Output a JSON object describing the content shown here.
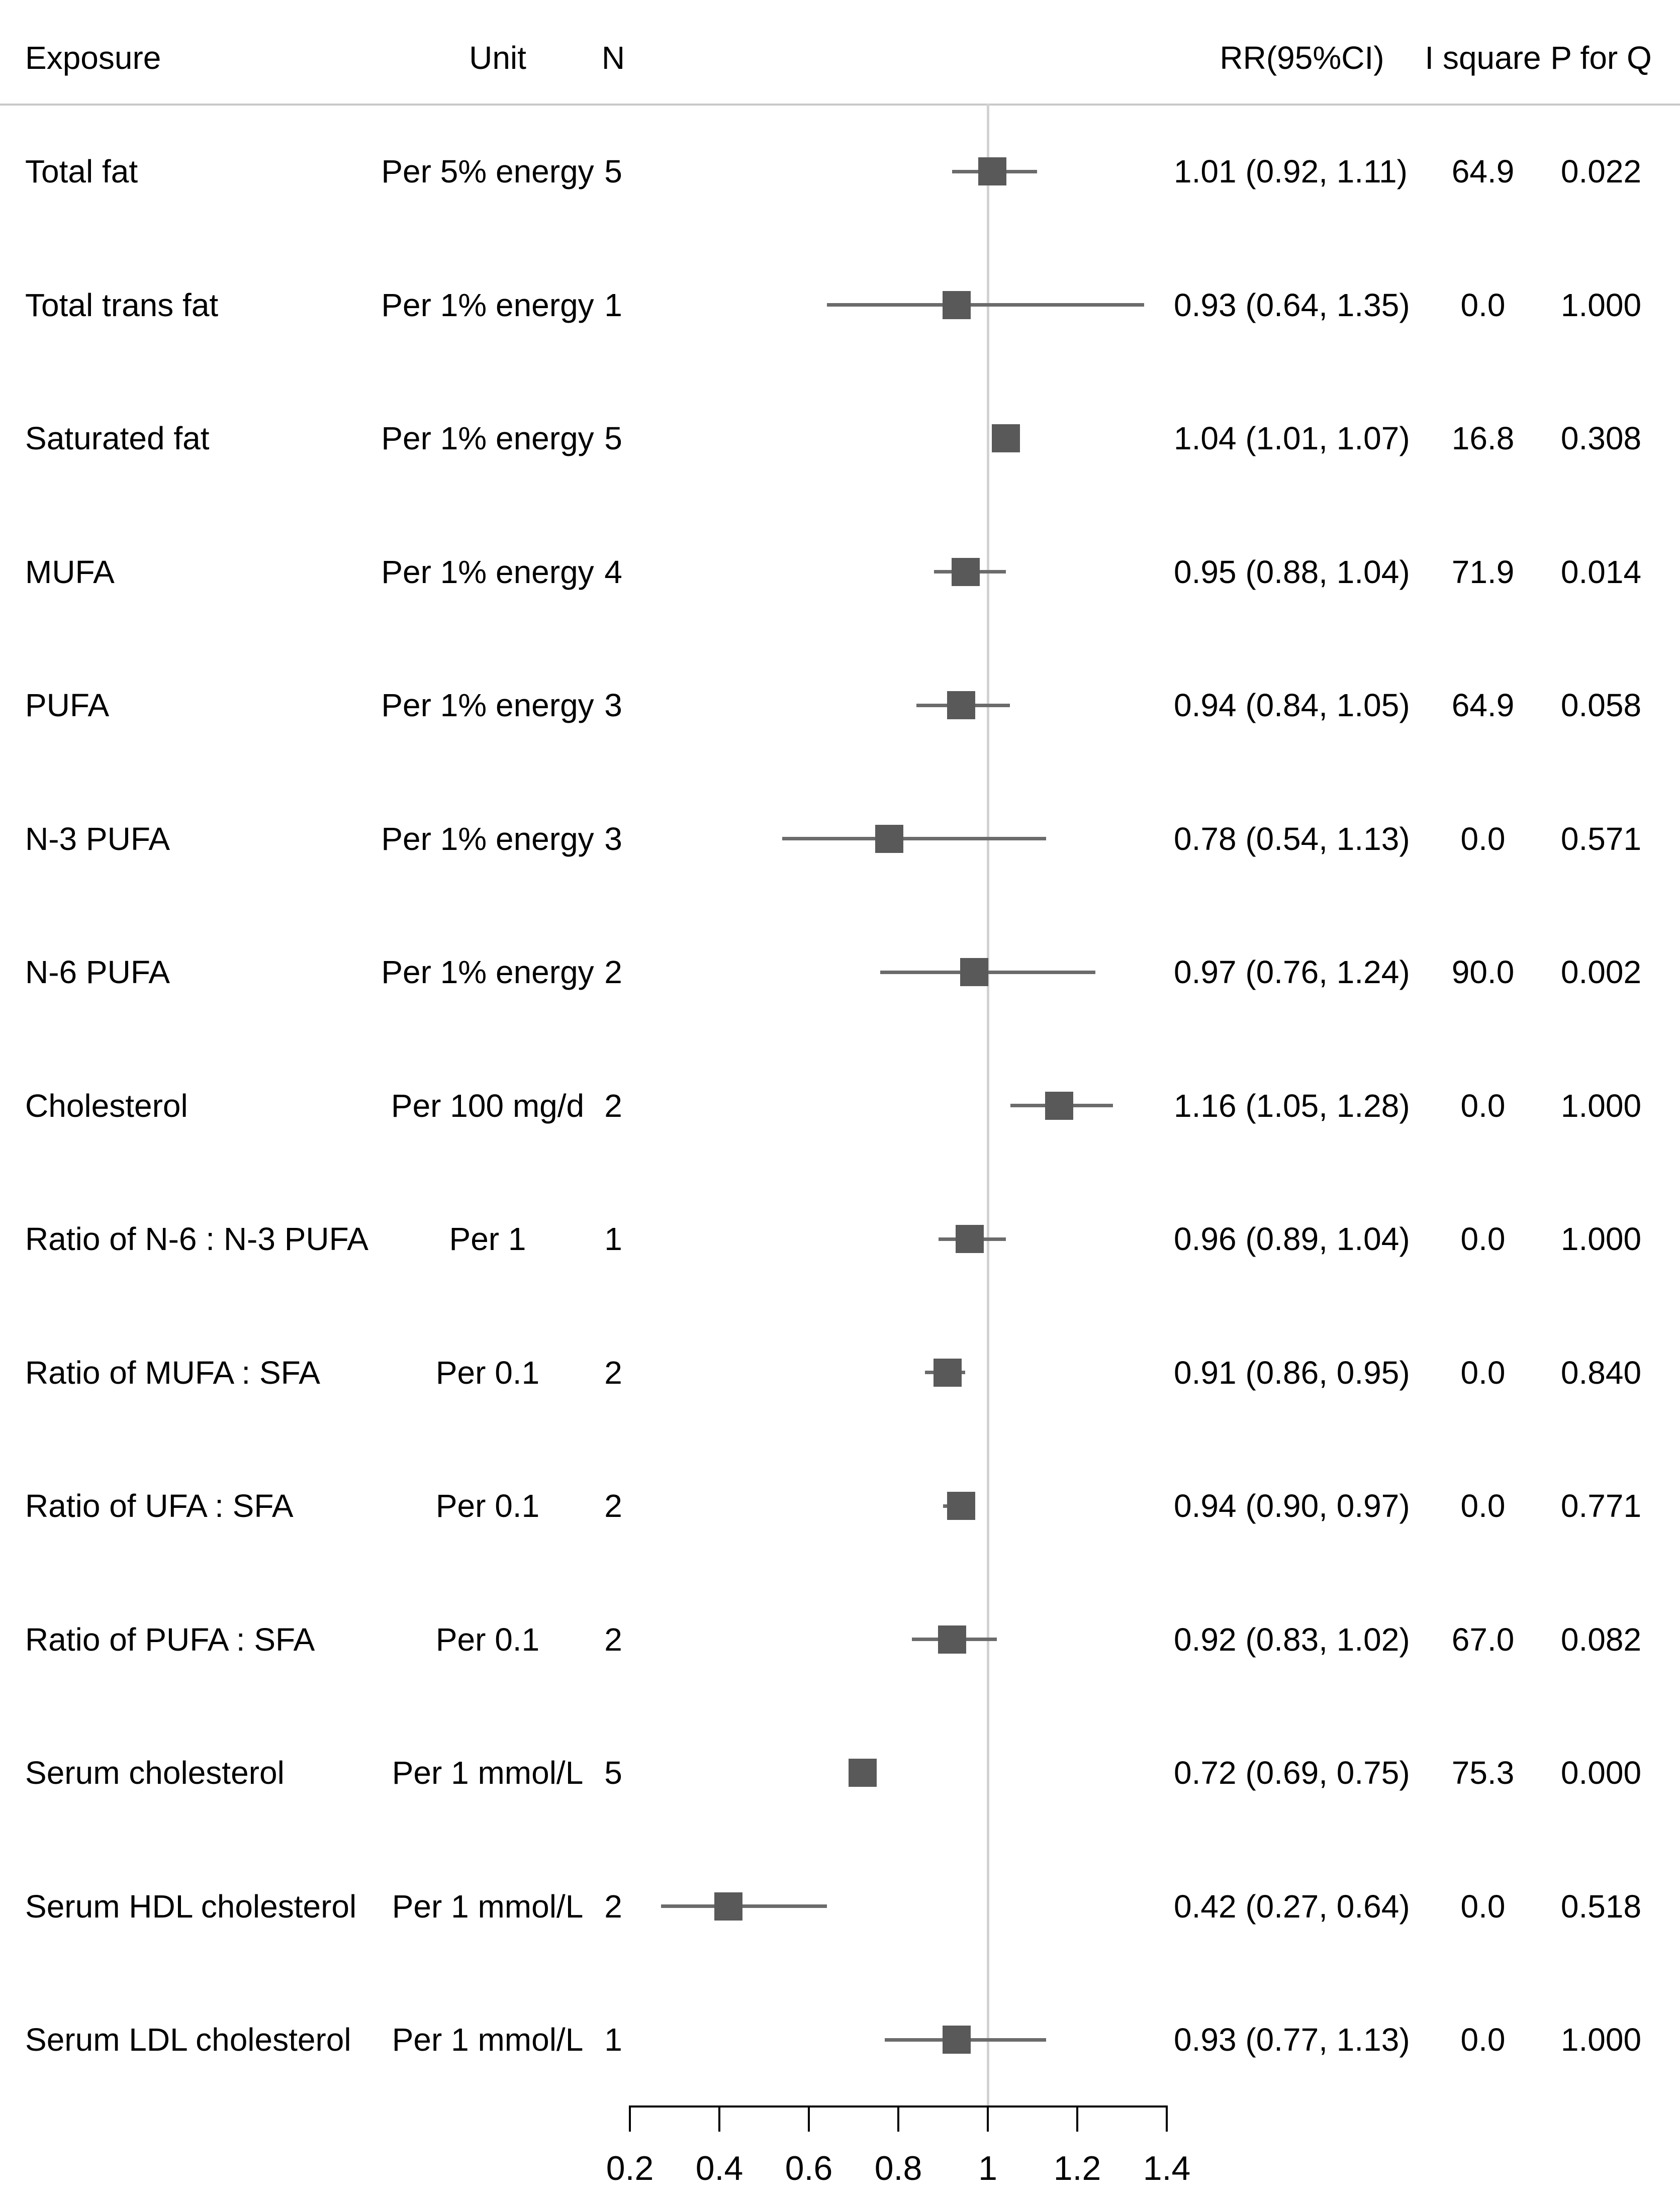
{
  "header": {
    "exposure": "Exposure",
    "unit": "Unit",
    "n": "N",
    "rr": "RR(95%CI)",
    "i_square": "I square",
    "p_for_q": "P for Q"
  },
  "colors": {
    "text": "#000000",
    "marker": "#595959",
    "whisker": "#6b6b6b",
    "reference_line": "#d2d2d2",
    "separator": "#c9c9c9",
    "axis": "#000000"
  },
  "chart_data": {
    "type": "forest",
    "title": "",
    "xlabel": "",
    "x_axis": {
      "range": [
        0.2,
        1.4
      ],
      "reference_value": 1,
      "ticks": [
        0.2,
        0.4,
        0.6,
        0.8,
        1,
        1.2,
        1.4
      ],
      "tick_labels": [
        "0.2",
        "0.4",
        "0.6",
        "0.8",
        "1",
        "1.2",
        "1.4"
      ]
    },
    "columns": [
      "Exposure",
      "Unit",
      "N",
      "RR(95%CI)",
      "I square",
      "P for Q"
    ],
    "rows": [
      {
        "exposure": "Total fat",
        "unit": "Per 5% energy",
        "n": "5",
        "estimate": 1.01,
        "ci_low": 0.92,
        "ci_high": 1.11,
        "rr_text": "1.01 (0.92, 1.11)",
        "i_square": "64.9",
        "p_for_q": "0.022"
      },
      {
        "exposure": "Total trans fat",
        "unit": "Per 1% energy",
        "n": "1",
        "estimate": 0.93,
        "ci_low": 0.64,
        "ci_high": 1.35,
        "rr_text": "0.93 (0.64, 1.35)",
        "i_square": "0.0",
        "p_for_q": "1.000"
      },
      {
        "exposure": "Saturated fat",
        "unit": "Per 1% energy",
        "n": "5",
        "estimate": 1.04,
        "ci_low": 1.01,
        "ci_high": 1.07,
        "rr_text": "1.04 (1.01, 1.07)",
        "i_square": "16.8",
        "p_for_q": "0.308"
      },
      {
        "exposure": "MUFA",
        "unit": "Per 1% energy",
        "n": "4",
        "estimate": 0.95,
        "ci_low": 0.88,
        "ci_high": 1.04,
        "rr_text": "0.95 (0.88, 1.04)",
        "i_square": "71.9",
        "p_for_q": "0.014"
      },
      {
        "exposure": "PUFA",
        "unit": "Per 1% energy",
        "n": "3",
        "estimate": 0.94,
        "ci_low": 0.84,
        "ci_high": 1.05,
        "rr_text": "0.94 (0.84, 1.05)",
        "i_square": "64.9",
        "p_for_q": "0.058"
      },
      {
        "exposure": "N-3 PUFA",
        "unit": "Per 1% energy",
        "n": "3",
        "estimate": 0.78,
        "ci_low": 0.54,
        "ci_high": 1.13,
        "rr_text": "0.78 (0.54, 1.13)",
        "i_square": "0.0",
        "p_for_q": "0.571"
      },
      {
        "exposure": "N-6 PUFA",
        "unit": "Per 1% energy",
        "n": "2",
        "estimate": 0.97,
        "ci_low": 0.76,
        "ci_high": 1.24,
        "rr_text": "0.97 (0.76, 1.24)",
        "i_square": "90.0",
        "p_for_q": "0.002"
      },
      {
        "exposure": "Cholesterol",
        "unit": "Per 100 mg/d",
        "n": "2",
        "estimate": 1.16,
        "ci_low": 1.05,
        "ci_high": 1.28,
        "rr_text": "1.16 (1.05, 1.28)",
        "i_square": "0.0",
        "p_for_q": "1.000"
      },
      {
        "exposure": "Ratio of N-6 : N-3 PUFA",
        "unit": "Per 1",
        "n": "1",
        "estimate": 0.96,
        "ci_low": 0.89,
        "ci_high": 1.04,
        "rr_text": "0.96 (0.89, 1.04)",
        "i_square": "0.0",
        "p_for_q": "1.000"
      },
      {
        "exposure": "Ratio of MUFA : SFA",
        "unit": "Per 0.1",
        "n": "2",
        "estimate": 0.91,
        "ci_low": 0.86,
        "ci_high": 0.95,
        "rr_text": "0.91 (0.86, 0.95)",
        "i_square": "0.0",
        "p_for_q": "0.840"
      },
      {
        "exposure": "Ratio of UFA : SFA",
        "unit": "Per 0.1",
        "n": "2",
        "estimate": 0.94,
        "ci_low": 0.9,
        "ci_high": 0.97,
        "rr_text": "0.94 (0.90, 0.97)",
        "i_square": "0.0",
        "p_for_q": "0.771"
      },
      {
        "exposure": "Ratio of PUFA : SFA",
        "unit": "Per 0.1",
        "n": "2",
        "estimate": 0.92,
        "ci_low": 0.83,
        "ci_high": 1.02,
        "rr_text": "0.92 (0.83, 1.02)",
        "i_square": "67.0",
        "p_for_q": "0.082"
      },
      {
        "exposure": "Serum cholesterol",
        "unit": "Per 1 mmol/L",
        "n": "5",
        "estimate": 0.72,
        "ci_low": 0.69,
        "ci_high": 0.75,
        "rr_text": "0.72 (0.69, 0.75)",
        "i_square": "75.3",
        "p_for_q": "0.000"
      },
      {
        "exposure": "Serum HDL cholesterol",
        "unit": "Per 1 mmol/L",
        "n": "2",
        "estimate": 0.42,
        "ci_low": 0.27,
        "ci_high": 0.64,
        "rr_text": "0.42 (0.27, 0.64)",
        "i_square": "0.0",
        "p_for_q": "0.518"
      },
      {
        "exposure": "Serum LDL cholesterol",
        "unit": "Per 1 mmol/L",
        "n": "1",
        "estimate": 0.93,
        "ci_low": 0.77,
        "ci_high": 1.13,
        "rr_text": "0.93 (0.77, 1.13)",
        "i_square": "0.0",
        "p_for_q": "1.000"
      }
    ]
  }
}
